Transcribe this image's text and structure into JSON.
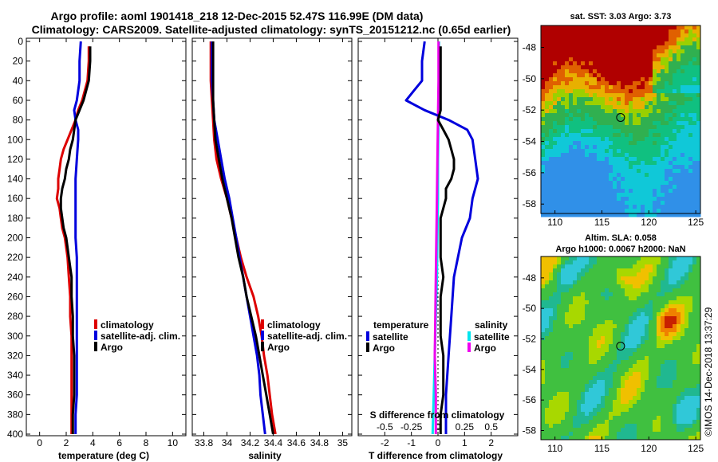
{
  "header": {
    "title_line1": "Argo profile: aoml 1901418_218 12-Dec-2015 52.47S 116.99E (DM data)",
    "title_line2": "Climatology: CARS2009. Satellite-adjusted climatology: synTS_20151212.nc (0.65d earlier)"
  },
  "depth_ticks": [
    0,
    20,
    40,
    60,
    80,
    100,
    120,
    140,
    160,
    180,
    200,
    220,
    240,
    260,
    280,
    300,
    320,
    340,
    360,
    380,
    400
  ],
  "colors": {
    "climatology": "#dd0000",
    "satellite": "#0000dd",
    "argo": "#000000",
    "sal_sat": "#00e5ee",
    "sal_argo": "#ee00ee"
  },
  "chart_data": [
    {
      "type": "line",
      "id": "temperature",
      "xlabel": "temperature (deg C)",
      "xlim": [
        -1,
        11
      ],
      "ylim": [
        400,
        0
      ],
      "x_ticks": [
        "0",
        "2",
        "4",
        "6",
        "8",
        "10"
      ],
      "x_tick_values": [
        0,
        2,
        4,
        6,
        8,
        10
      ],
      "legend": [
        "climatology",
        "satellite-adj. clim.",
        "Argo"
      ],
      "series": [
        {
          "name": "climatology",
          "color": "#dd0000",
          "depth": [
            5,
            20,
            40,
            60,
            70,
            80,
            90,
            100,
            110,
            120,
            130,
            140,
            150,
            160,
            170,
            180,
            190,
            200,
            220,
            240,
            260,
            280,
            300,
            320,
            340,
            360,
            380,
            400
          ],
          "values": [
            3.7,
            3.7,
            3.6,
            3.2,
            2.9,
            2.7,
            2.4,
            2.1,
            1.8,
            1.6,
            1.5,
            1.4,
            1.4,
            1.3,
            1.5,
            1.6,
            1.7,
            1.9,
            2.1,
            2.2,
            2.3,
            2.3,
            2.4,
            2.4,
            2.4,
            2.4,
            2.4,
            2.4
          ]
        },
        {
          "name": "satellite-adj. clim.",
          "color": "#0000dd",
          "depth": [
            0,
            20,
            40,
            60,
            70,
            80,
            90,
            100,
            120,
            140,
            160,
            180,
            200,
            220,
            240,
            260,
            280,
            300,
            320,
            340,
            360,
            380,
            400
          ],
          "values": [
            3.1,
            3.0,
            3.0,
            2.8,
            2.6,
            2.7,
            2.9,
            2.9,
            2.8,
            2.7,
            2.7,
            2.7,
            2.7,
            2.8,
            2.8,
            2.8,
            2.8,
            2.8,
            2.8,
            2.8,
            2.8,
            2.7,
            2.7
          ]
        },
        {
          "name": "Argo",
          "color": "#000000",
          "depth": [
            5,
            20,
            40,
            60,
            70,
            80,
            90,
            100,
            110,
            120,
            130,
            140,
            150,
            160,
            170,
            180,
            190,
            200,
            220,
            240,
            260,
            280,
            300,
            320,
            340,
            360,
            380,
            400
          ],
          "values": [
            3.8,
            3.8,
            3.7,
            3.3,
            3.0,
            2.7,
            2.6,
            2.5,
            2.3,
            2.2,
            2.0,
            1.9,
            1.7,
            1.6,
            1.6,
            1.7,
            1.8,
            2.0,
            2.2,
            2.4,
            2.4,
            2.5,
            2.5,
            2.6,
            2.6,
            2.6,
            2.5,
            2.5
          ]
        }
      ]
    },
    {
      "type": "line",
      "id": "salinity",
      "xlabel": "salinity",
      "xlim": [
        33.7,
        35.08
      ],
      "ylim": [
        400,
        0
      ],
      "x_ticks": [
        "33.8",
        "34",
        "34.2",
        "34.4",
        "34.6",
        "34.8",
        "35"
      ],
      "x_tick_values": [
        33.8,
        34.0,
        34.2,
        34.4,
        34.6,
        34.8,
        35.0
      ],
      "legend": [
        "climatology",
        "satellite-adj. clim.",
        "Argo"
      ],
      "series": [
        {
          "name": "climatology",
          "color": "#dd0000",
          "depth": [
            0,
            40,
            60,
            80,
            100,
            120,
            140,
            160,
            180,
            200,
            220,
            240,
            260,
            280,
            300,
            320,
            340,
            360,
            380,
            400
          ],
          "values": [
            33.86,
            33.86,
            33.87,
            33.88,
            33.89,
            33.91,
            33.95,
            34.0,
            34.04,
            34.08,
            34.12,
            34.17,
            34.23,
            34.27,
            34.3,
            34.32,
            34.35,
            34.37,
            34.39,
            34.42
          ]
        },
        {
          "name": "satellite-adj. clim.",
          "color": "#0000dd",
          "depth": [
            0,
            40,
            60,
            80,
            100,
            120,
            140,
            160,
            180,
            200,
            220,
            240,
            260,
            280,
            300,
            320,
            340,
            360,
            380,
            400
          ],
          "values": [
            33.87,
            33.87,
            33.88,
            33.89,
            33.92,
            33.95,
            33.98,
            34.02,
            34.05,
            34.08,
            34.11,
            34.14,
            34.17,
            34.2,
            34.23,
            34.26,
            34.28,
            34.29,
            34.31,
            34.33
          ]
        },
        {
          "name": "Argo",
          "color": "#000000",
          "depth": [
            0,
            40,
            60,
            80,
            100,
            120,
            140,
            160,
            180,
            200,
            220,
            240,
            260,
            280,
            300,
            320,
            340,
            360,
            380,
            400
          ],
          "values": [
            33.88,
            33.88,
            33.88,
            33.89,
            33.9,
            33.93,
            33.96,
            34.0,
            34.04,
            34.07,
            34.1,
            34.14,
            34.17,
            34.21,
            34.25,
            34.28,
            34.31,
            34.34,
            34.37,
            34.4
          ]
        }
      ]
    },
    {
      "type": "line",
      "id": "difference",
      "xlabel": "T difference from climatology",
      "xlabel_top": "S difference from climatology",
      "xlim": [
        -3,
        3
      ],
      "ylim": [
        400,
        0
      ],
      "x_ticks": [
        "-2",
        "-1",
        "0",
        "1",
        "2"
      ],
      "x_tick_values": [
        -2,
        -1,
        0,
        1,
        2
      ],
      "s_ticks": [
        "-0.5",
        "-0.25",
        "0",
        "0.25",
        "0.5"
      ],
      "s_tick_values": [
        -0.5,
        -0.25,
        0,
        0.25,
        0.5
      ],
      "s_scale": 4,
      "legend_temperature": {
        "heading": "temperature",
        "items": [
          "satellite",
          "Argo"
        ]
      },
      "legend_salinity": {
        "heading": "salinity",
        "items": [
          "satellite",
          "Argo"
        ]
      },
      "series": [
        {
          "name": "T satellite",
          "color": "#0000dd",
          "depth": [
            0,
            20,
            40,
            50,
            60,
            70,
            80,
            90,
            100,
            120,
            140,
            160,
            180,
            200,
            240,
            280,
            320,
            360,
            400
          ],
          "values": [
            -0.5,
            -0.6,
            -0.6,
            -0.9,
            -1.2,
            -0.5,
            0.4,
            1.1,
            1.3,
            1.4,
            1.5,
            1.3,
            1.2,
            0.9,
            0.6,
            0.5,
            0.4,
            0.3,
            0.3
          ]
        },
        {
          "name": "T Argo",
          "color": "#000000",
          "depth": [
            5,
            20,
            40,
            60,
            70,
            80,
            90,
            100,
            110,
            120,
            130,
            140,
            150,
            160,
            180,
            200,
            220,
            240,
            260,
            280,
            300,
            320,
            340,
            360,
            380,
            400
          ],
          "values": [
            0.1,
            0.1,
            0.1,
            0.1,
            0.1,
            0.0,
            0.2,
            0.4,
            0.5,
            0.6,
            0.6,
            0.5,
            0.3,
            0.3,
            0.1,
            0.1,
            0.1,
            0.2,
            0.1,
            0.1,
            0.1,
            0.2,
            0.2,
            0.2,
            0.1,
            0.1
          ]
        },
        {
          "name": "S satellite",
          "color": "#00e5ee",
          "depth": [
            0,
            40,
            80,
            120,
            160,
            200,
            240,
            280,
            320,
            360,
            400
          ],
          "values": [
            0.01,
            0.01,
            0.005,
            0.0,
            0.0,
            -0.005,
            -0.01,
            -0.02,
            -0.03,
            -0.04,
            -0.05
          ]
        },
        {
          "name": "S Argo",
          "color": "#ee00ee",
          "depth": [
            0,
            40,
            80,
            120,
            160,
            200,
            240,
            280,
            320,
            360,
            400
          ],
          "values": [
            0.005,
            0.005,
            0.0,
            -0.005,
            -0.01,
            -0.015,
            -0.02,
            -0.025,
            -0.03,
            -0.02,
            -0.02
          ]
        }
      ]
    },
    {
      "type": "heatmap",
      "id": "sst_map",
      "title": "sat. SST: 3.03 Argo: 3.73",
      "x_ticks": [
        "110",
        "115",
        "120",
        "125"
      ],
      "x_tick_values": [
        110,
        115,
        120,
        125
      ],
      "y_ticks": [
        "-48",
        "-50",
        "-52",
        "-54",
        "-56",
        "-58"
      ],
      "y_tick_values": [
        -48,
        -50,
        -52,
        -54,
        -56,
        -58
      ],
      "xlim": [
        108.5,
        125.5
      ],
      "ylim": [
        -58.6,
        -46.6
      ],
      "marker": {
        "lon": 116.99,
        "lat": -52.47
      }
    },
    {
      "type": "heatmap",
      "id": "sla_map",
      "title_line1": "Altim. SLA: 0.058",
      "title_line2": "Argo h1000: 0.0067 h2000: NaN",
      "x_ticks": [
        "110",
        "115",
        "120",
        "125"
      ],
      "x_tick_values": [
        110,
        115,
        120,
        125
      ],
      "y_ticks": [
        "-48",
        "-50",
        "-52",
        "-54",
        "-56",
        "-58"
      ],
      "y_tick_values": [
        -48,
        -50,
        -52,
        -54,
        -56,
        -58
      ],
      "xlim": [
        108.5,
        125.5
      ],
      "ylim": [
        -58.6,
        -46.6
      ],
      "marker": {
        "lon": 116.99,
        "lat": -52.47
      }
    }
  ],
  "footer": {
    "credit": "©IMOS 14-Dec-2018 13:37:29"
  }
}
